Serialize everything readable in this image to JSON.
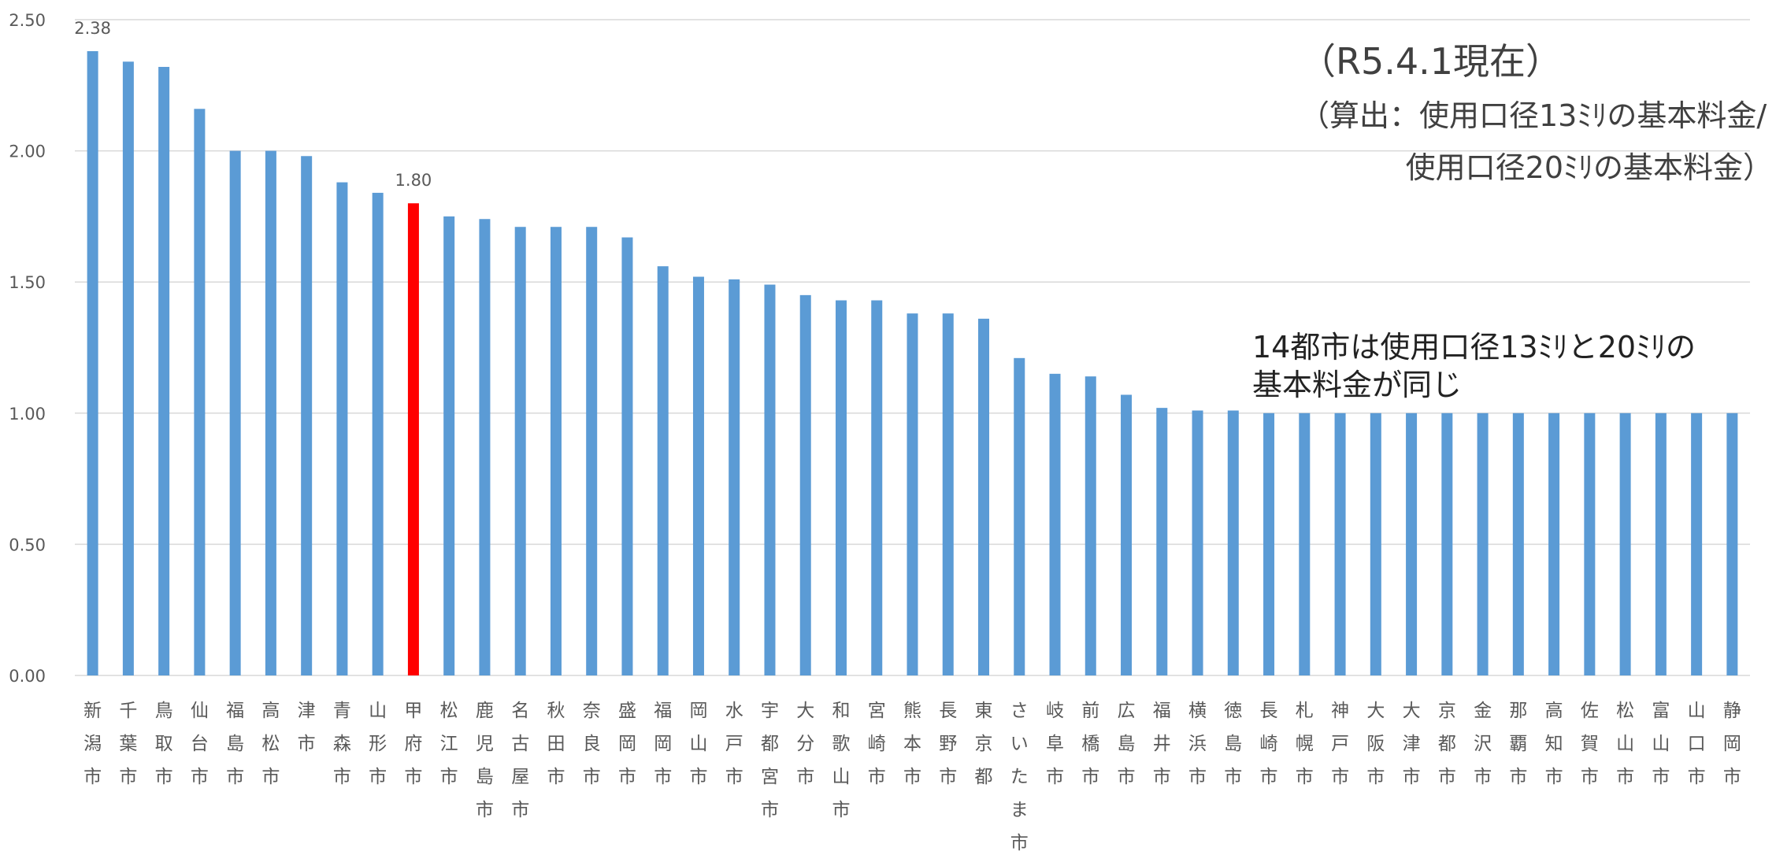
{
  "chart_data": {
    "type": "bar",
    "title": "",
    "xlabel": "",
    "ylabel": "",
    "ylim": [
      0,
      2.5
    ],
    "y_ticks": [
      "0.00",
      "0.50",
      "1.00",
      "1.50",
      "2.00",
      "2.50"
    ],
    "grid": true,
    "legend": "none",
    "colors": {
      "default": "#5B9BD5",
      "highlight": "#FF0000",
      "grid": "#D9D9D9",
      "text": "#595959"
    },
    "highlight_category": "甲府市",
    "categories": [
      "新潟市",
      "千葉市",
      "鳥取市",
      "仙台市",
      "福島市",
      "高松市",
      "津市",
      "青森市",
      "山形市",
      "甲府市",
      "松江市",
      "鹿児島市",
      "名古屋市",
      "秋田市",
      "奈良市",
      "盛岡市",
      "福岡市",
      "岡山市",
      "水戸市",
      "宇都宮市",
      "大分市",
      "和歌山市",
      "宮崎市",
      "熊本市",
      "長野市",
      "東京都",
      "さいたま市",
      "岐阜市",
      "前橋市",
      "広島市",
      "福井市",
      "横浜市",
      "徳島市",
      "長崎市",
      "札幌市",
      "神戸市",
      "大阪市",
      "大津市",
      "京都市",
      "金沢市",
      "那覇市",
      "高知市",
      "佐賀市",
      "松山市",
      "富山市",
      "山口市",
      "静岡市"
    ],
    "values": [
      2.38,
      2.34,
      2.32,
      2.16,
      2.0,
      2.0,
      1.98,
      1.88,
      1.84,
      1.8,
      1.75,
      1.74,
      1.71,
      1.71,
      1.71,
      1.67,
      1.56,
      1.52,
      1.51,
      1.49,
      1.45,
      1.43,
      1.43,
      1.38,
      1.38,
      1.36,
      1.21,
      1.15,
      1.14,
      1.07,
      1.02,
      1.01,
      1.01,
      1.0,
      1.0,
      1.0,
      1.0,
      1.0,
      1.0,
      1.0,
      1.0,
      1.0,
      1.0,
      1.0,
      1.0,
      1.0,
      1.0
    ],
    "data_labels": [
      {
        "category": "新潟市",
        "text": "2.38"
      },
      {
        "category": "甲府市",
        "text": "1.80"
      }
    ]
  },
  "annotations": {
    "date": "（R5.4.1現在）",
    "formula_line1": "（算出：使用口径13ﾐﾘの基本料金/",
    "formula_line2": "使用口径20ﾐﾘの基本料金）",
    "equal_note_line1": "14都市は使用口径13ﾐﾘと20ﾐﾘの",
    "equal_note_line2": "基本料金が同じ"
  }
}
